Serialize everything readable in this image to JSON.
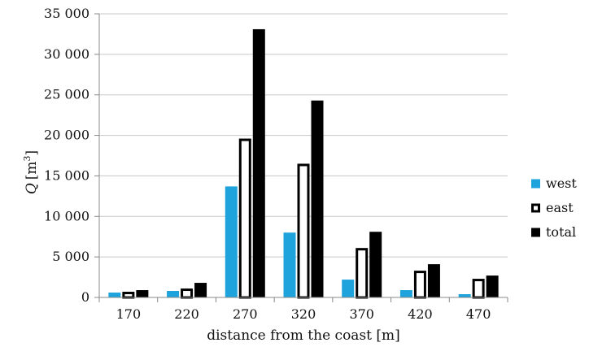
{
  "chart_data": {
    "type": "bar",
    "title": "",
    "xlabel": "distance from the coast [m]",
    "ylabel": {
      "symbol": "Q",
      "unit": "[m",
      "sup": "3",
      "close": "]"
    },
    "categories": [
      "170",
      "220",
      "270",
      "320",
      "370",
      "420",
      "470"
    ],
    "series": [
      {
        "name": "west",
        "values": [
          600,
          800,
          13700,
          8000,
          2200,
          900,
          400
        ],
        "color": "#1ea3dc",
        "style": "filled"
      },
      {
        "name": "east",
        "values": [
          700,
          1100,
          19600,
          16500,
          6100,
          3300,
          2300
        ],
        "color": "#000000",
        "style": "outline"
      },
      {
        "name": "total",
        "values": [
          900,
          1800,
          33100,
          24300,
          8100,
          4100,
          2700
        ],
        "color": "#000000",
        "style": "filled"
      }
    ],
    "ylim": [
      0,
      35000
    ],
    "yticks": [
      0,
      5000,
      10000,
      15000,
      20000,
      25000,
      30000,
      35000
    ],
    "ytick_labels": [
      "0",
      "5 000",
      "10 000",
      "15 000",
      "20 000",
      "25 000",
      "30 000",
      "35 000"
    ],
    "grid": true,
    "legend_position": "right"
  }
}
